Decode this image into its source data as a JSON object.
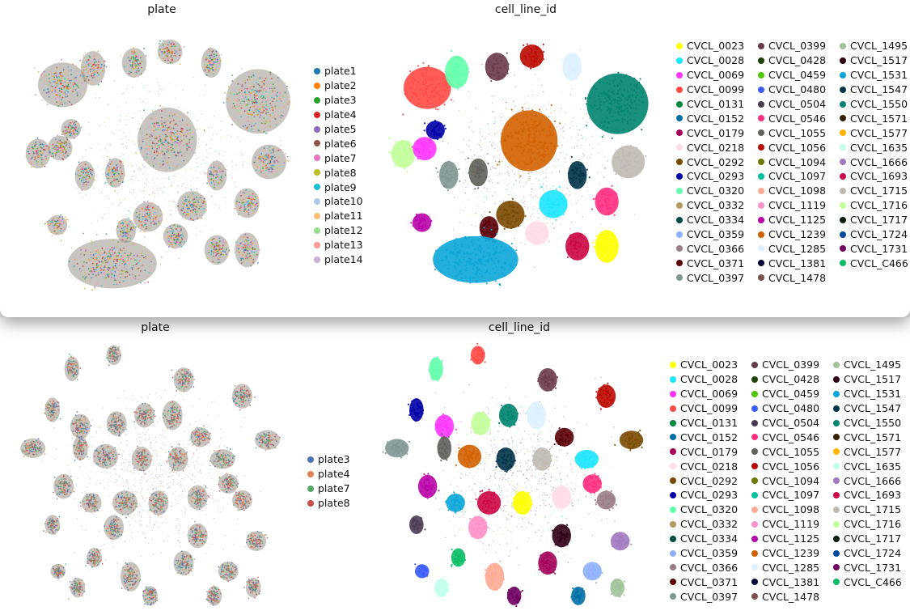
{
  "chart_data": [
    {
      "type": "scatter",
      "title": "plate",
      "legend_placement": "right",
      "legend": [
        {
          "name": "plate1",
          "color": "#1f77b4"
        },
        {
          "name": "plate2",
          "color": "#ff7f0e"
        },
        {
          "name": "plate3",
          "color": "#2ca02c"
        },
        {
          "name": "plate4",
          "color": "#d62728"
        },
        {
          "name": "plate5",
          "color": "#9467bd"
        },
        {
          "name": "plate6",
          "color": "#8c564b"
        },
        {
          "name": "plate7",
          "color": "#e377c2"
        },
        {
          "name": "plate8",
          "color": "#bcbd22"
        },
        {
          "name": "plate9",
          "color": "#17becf"
        },
        {
          "name": "plate10",
          "color": "#aec7e8"
        },
        {
          "name": "plate11",
          "color": "#ffbb78"
        },
        {
          "name": "plate12",
          "color": "#98df8a"
        },
        {
          "name": "plate13",
          "color": "#ff9896"
        },
        {
          "name": "plate14",
          "color": "#c5b0d5"
        }
      ],
      "axes": "off",
      "grid": false
    },
    {
      "type": "scatter",
      "title": "cell_line_id",
      "legend_placement": "right",
      "legend": [
        {
          "name": "CVCL_0023",
          "color": "#ffff00"
        },
        {
          "name": "CVCL_0028",
          "color": "#1ce6ff"
        },
        {
          "name": "CVCL_0069",
          "color": "#ff34ff"
        },
        {
          "name": "CVCL_0099",
          "color": "#ff4a46"
        },
        {
          "name": "CVCL_0131",
          "color": "#008941"
        },
        {
          "name": "CVCL_0152",
          "color": "#006fa6"
        },
        {
          "name": "CVCL_0179",
          "color": "#a30059"
        },
        {
          "name": "CVCL_0218",
          "color": "#ffdbe5"
        },
        {
          "name": "CVCL_0292",
          "color": "#7a4900"
        },
        {
          "name": "CVCL_0293",
          "color": "#0000a6"
        },
        {
          "name": "CVCL_0320",
          "color": "#63ffac"
        },
        {
          "name": "CVCL_0332",
          "color": "#b79762"
        },
        {
          "name": "CVCL_0334",
          "color": "#004d43"
        },
        {
          "name": "CVCL_0359",
          "color": "#8fb0ff"
        },
        {
          "name": "CVCL_0366",
          "color": "#997d87"
        },
        {
          "name": "CVCL_0371",
          "color": "#5a0007"
        },
        {
          "name": "CVCL_0397",
          "color": "#809693"
        },
        {
          "name": "CVCL_0399",
          "color": "#6a3a4c"
        },
        {
          "name": "CVCL_0428",
          "color": "#1b4400"
        },
        {
          "name": "CVCL_0459",
          "color": "#4fc601"
        },
        {
          "name": "CVCL_0480",
          "color": "#3b5dff"
        },
        {
          "name": "CVCL_0504",
          "color": "#4a3b53"
        },
        {
          "name": "CVCL_0546",
          "color": "#ff2f80"
        },
        {
          "name": "CVCL_1055",
          "color": "#61615a"
        },
        {
          "name": "CVCL_1056",
          "color": "#ba0900"
        },
        {
          "name": "CVCL_1094",
          "color": "#6b7900"
        },
        {
          "name": "CVCL_1097",
          "color": "#00c2a0"
        },
        {
          "name": "CVCL_1098",
          "color": "#ffaa92"
        },
        {
          "name": "CVCL_1119",
          "color": "#ff90c9"
        },
        {
          "name": "CVCL_1125",
          "color": "#b903aa"
        },
        {
          "name": "CVCL_1239",
          "color": "#d16100"
        },
        {
          "name": "CVCL_1285",
          "color": "#ddefff"
        },
        {
          "name": "CVCL_1381",
          "color": "#000035"
        },
        {
          "name": "CVCL_1478",
          "color": "#7b4f4b"
        },
        {
          "name": "CVCL_1495",
          "color": "#a1c299"
        },
        {
          "name": "CVCL_1517",
          "color": "#300018"
        },
        {
          "name": "CVCL_1531",
          "color": "#0aa6d8"
        },
        {
          "name": "CVCL_1547",
          "color": "#013349"
        },
        {
          "name": "CVCL_1550",
          "color": "#00846f"
        },
        {
          "name": "CVCL_1571",
          "color": "#372101"
        },
        {
          "name": "CVCL_1577",
          "color": "#ffb500"
        },
        {
          "name": "CVCL_1635",
          "color": "#c2ffed"
        },
        {
          "name": "CVCL_1666",
          "color": "#a079bf"
        },
        {
          "name": "CVCL_1693",
          "color": "#cc0744"
        },
        {
          "name": "CVCL_1715",
          "color": "#c0b9b2"
        },
        {
          "name": "CVCL_1716",
          "color": "#c2ff99"
        },
        {
          "name": "CVCL_1717",
          "color": "#001e09"
        },
        {
          "name": "CVCL_1724",
          "color": "#00489c"
        },
        {
          "name": "CVCL_1731",
          "color": "#6f0062"
        },
        {
          "name": "CVCL_C466",
          "color": "#0cbd66"
        }
      ],
      "axes": "off",
      "grid": false
    },
    {
      "type": "scatter",
      "title": "plate",
      "legend_placement": "right",
      "legend": [
        {
          "name": "plate3",
          "color": "#4c72b0"
        },
        {
          "name": "plate4",
          "color": "#dd8452"
        },
        {
          "name": "plate7",
          "color": "#55a868"
        },
        {
          "name": "plate8",
          "color": "#c44e52"
        }
      ],
      "axes": "off",
      "grid": false
    },
    {
      "type": "scatter",
      "title": "cell_line_id",
      "legend_placement": "right",
      "legend_same_as_panel": 2,
      "axes": "off",
      "grid": false
    }
  ]
}
